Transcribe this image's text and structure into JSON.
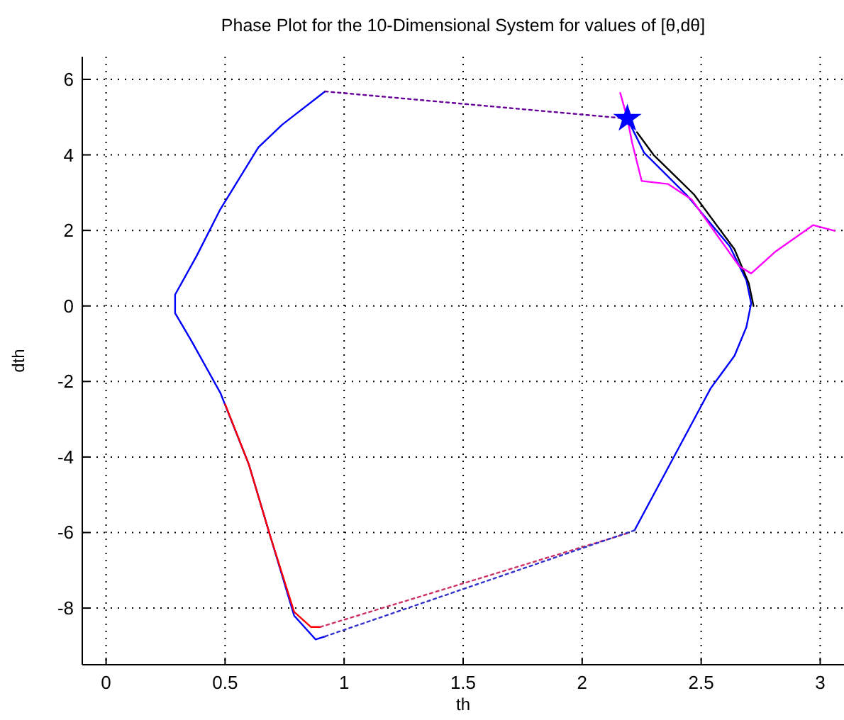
{
  "chart_data": {
    "type": "line",
    "title": "Phase Plot for the 10-Dimensional System for values of [θ,dθ]",
    "xlabel": "th",
    "ylabel": "dth",
    "xlim": [
      -0.1,
      3.1
    ],
    "ylim": [
      -9.5,
      6.6
    ],
    "xticks": [
      0,
      0.5,
      1,
      1.5,
      2,
      2.5,
      3
    ],
    "yticks": [
      -8,
      -6,
      -4,
      -2,
      0,
      2,
      4,
      6
    ],
    "grid": true,
    "marker": "none",
    "line_style": "solid",
    "series": [
      {
        "color": "#0000ff",
        "x": [
          2.19,
          2.26,
          2.44,
          2.62,
          2.69,
          2.71,
          2.69,
          2.64,
          2.54,
          2.46,
          2.22
        ],
        "values": [
          4.96,
          4.06,
          2.93,
          1.58,
          0.68,
          0.07,
          -0.56,
          -1.32,
          -2.18,
          -3.12,
          -5.94
        ]
      },
      {
        "color": "#0000ff",
        "x": [
          0.92,
          0.88,
          0.79,
          0.69,
          0.6,
          0.48,
          0.36,
          0.29,
          0.29,
          0.38,
          0.48,
          0.64,
          0.74,
          0.92
        ],
        "values": [
          -8.75,
          -8.83,
          -8.2,
          -6.1,
          -4.2,
          -2.3,
          -0.94,
          -0.19,
          0.3,
          1.32,
          2.56,
          4.2,
          4.8,
          5.68
        ]
      },
      {
        "color": "#000000",
        "x": [
          2.23,
          2.3,
          2.47,
          2.64,
          2.7,
          2.72
        ],
        "values": [
          4.6,
          4.0,
          2.95,
          1.5,
          0.6,
          0.0
        ]
      },
      {
        "color": "#ff0000",
        "x": [
          0.5,
          0.6,
          0.69,
          0.79,
          0.86,
          0.9
        ],
        "values": [
          -2.6,
          -4.2,
          -6.1,
          -8.1,
          -8.5,
          -8.5
        ]
      },
      {
        "color": "#ff00ff",
        "x": [
          2.16,
          2.19,
          2.21,
          2.25,
          2.36,
          2.46,
          2.66,
          2.71,
          2.81,
          2.97,
          3.06
        ],
        "values": [
          5.64,
          4.96,
          4.32,
          3.31,
          3.23,
          2.82,
          1.05,
          0.86,
          1.43,
          2.14,
          1.99
        ]
      },
      {
        "color": "#660099",
        "line_style": "dotted",
        "x": [
          0.92,
          2.19
        ],
        "values": [
          5.68,
          4.96
        ]
      },
      {
        "color": "#cc3366",
        "line_style": "dotted",
        "x": [
          0.9,
          2.19
        ],
        "values": [
          -8.5,
          -6.02
        ]
      },
      {
        "color": "#3333cc",
        "line_style": "dotted",
        "x": [
          0.92,
          2.22
        ],
        "values": [
          -8.75,
          -5.94
        ]
      },
      {
        "type": "scatter",
        "marker": "star",
        "color": "#0000ff",
        "x": [
          2.19
        ],
        "values": [
          4.96
        ]
      }
    ]
  }
}
